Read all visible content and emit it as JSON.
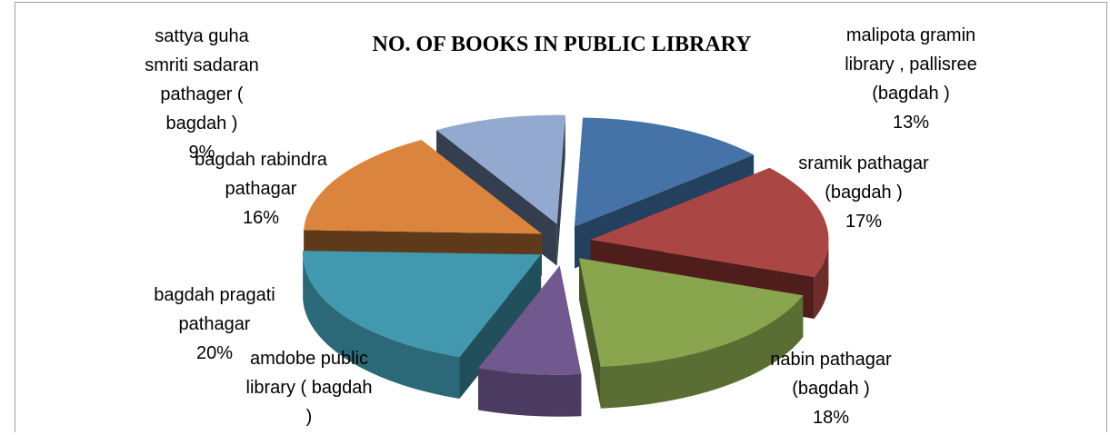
{
  "chart_data": {
    "type": "pie",
    "style": "3d-exploded",
    "title": "NO. OF BOOKS IN PUBLIC LIBRARY",
    "slices": [
      {
        "label_lines": [
          "malipota gramin",
          "library , pallisree",
          "(bagdah )",
          "13%"
        ],
        "value": 13,
        "color": "#4572A7",
        "side_color": "#2E4C70",
        "dark_color": "#24405F"
      },
      {
        "label_lines": [
          "sramik pathagar",
          "(bagdah )",
          "17%"
        ],
        "value": 17,
        "color": "#AA4643",
        "side_color": "#6E2D2B",
        "dark_color": "#4E1D1C"
      },
      {
        "label_lines": [
          "nabin pathagar",
          "(bagdah )",
          "18%"
        ],
        "value": 18,
        "color": "#89A54E",
        "side_color": "#5A6E33",
        "dark_color": "#44532A"
      },
      {
        "label_lines": [
          "amdobe public",
          "library  ( bagdah",
          ")"
        ],
        "value": 7,
        "color": "#71588F",
        "side_color": "#4C3B60",
        "dark_color": "#3A2E4A"
      },
      {
        "label_lines": [
          "bagdah pragati",
          "pathagar",
          "20%"
        ],
        "value": 20,
        "color": "#4198AF",
        "side_color": "#2B6878",
        "dark_color": "#214F5C"
      },
      {
        "label_lines": [
          "bagdah rabindra",
          "pathagar",
          "16%"
        ],
        "value": 16,
        "color": "#DB843D",
        "side_color": "#8F5628",
        "dark_color": "#5E3A1B"
      },
      {
        "label_lines": [
          "sattya guha",
          "smriti sadaran",
          "pathager (",
          "bagdah )",
          "9%"
        ],
        "value": 9,
        "color": "#93A9CF",
        "side_color": "#3E4A5E",
        "dark_color": "#353E4E"
      }
    ]
  }
}
